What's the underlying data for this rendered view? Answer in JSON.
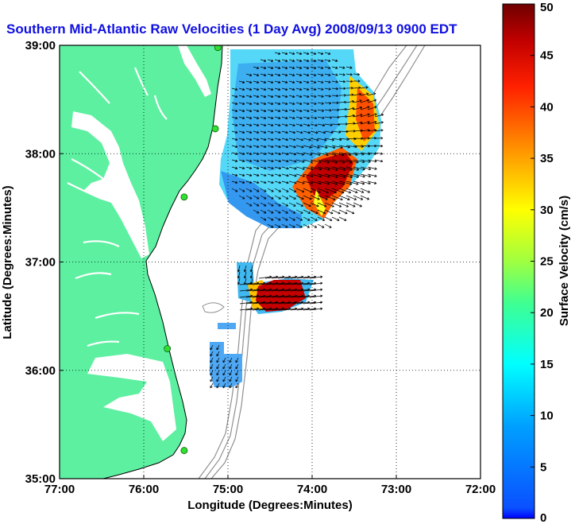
{
  "title": "Southern Mid-Atlantic Raw Velocities (1 Day Avg) 2008/09/13 0900 EDT",
  "title_color": "#1010e0",
  "map": {
    "xlabel": "Longitude (Degrees:Minutes)",
    "ylabel": "Latitude (Degrees:Minutes)",
    "lon_range": [
      -77,
      -72
    ],
    "lat_range": [
      35,
      39
    ],
    "x_ticks": [
      {
        "lon": -77,
        "label": "77:00"
      },
      {
        "lon": -76,
        "label": "76:00"
      },
      {
        "lon": -75,
        "label": "75:00"
      },
      {
        "lon": -74,
        "label": "74:00"
      },
      {
        "lon": -73,
        "label": "73:00"
      },
      {
        "lon": -72,
        "label": "72:00"
      }
    ],
    "y_ticks": [
      {
        "lat": 39,
        "label": "39:00"
      },
      {
        "lat": 38,
        "label": "38:00"
      },
      {
        "lat": 37,
        "label": "37:00"
      },
      {
        "lat": 36,
        "label": "36:00"
      },
      {
        "lat": 35,
        "label": "35:00"
      }
    ],
    "grid": "dotted",
    "land_color": "#5cf0a0",
    "bathymetry_color": "#909090",
    "arrow_color": "#000000",
    "station_color": "#30e030"
  },
  "colorbar": {
    "label": "Surface Velocity (cm/s)",
    "min": 0,
    "max": 50,
    "ticks": [
      "0",
      "5",
      "10",
      "15",
      "20",
      "25",
      "30",
      "35",
      "40",
      "45",
      "50"
    ],
    "colormap": "jet"
  },
  "stations": [
    {
      "lon": -75.12,
      "lat": 38.98
    },
    {
      "lon": -75.15,
      "lat": 38.23
    },
    {
      "lon": -75.52,
      "lat": 37.6
    },
    {
      "lon": -75.72,
      "lat": 36.2
    },
    {
      "lon": -75.52,
      "lat": 35.26
    }
  ],
  "velocity_regions": [
    {
      "name": "north-field",
      "lon_range": [
        -75.1,
        -73.45
      ],
      "lat_range": [
        37.58,
        38.95
      ],
      "pattern": "cyan-blue interior, red core near 73:50 W 37:45 N",
      "dominant_direction": "southeast along shelf"
    },
    {
      "name": "middle-patch",
      "lon_range": [
        -74.95,
        -74.1
      ],
      "lat_range": [
        36.6,
        37.0
      ],
      "pattern": "red core near 74:35 W 36:45 N",
      "dominant_direction": "east"
    },
    {
      "name": "south-patch",
      "lon_range": [
        -75.2,
        -74.85
      ],
      "lat_range": [
        35.9,
        36.45
      ],
      "pattern": "blue",
      "dominant_direction": "southwest"
    }
  ]
}
